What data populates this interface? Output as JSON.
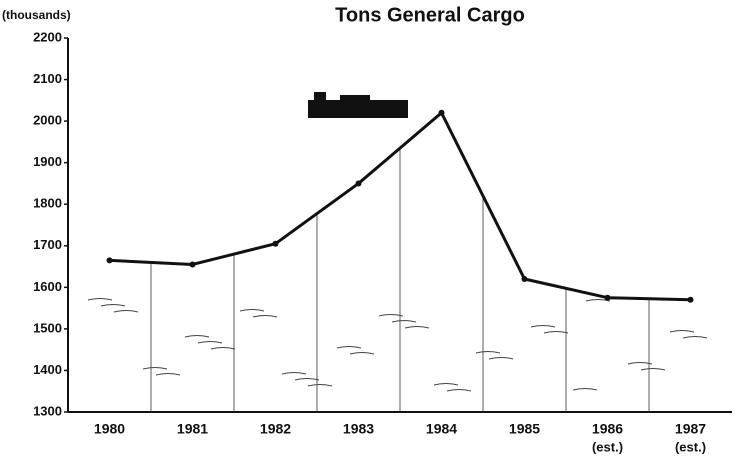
{
  "chart_data": {
    "type": "line",
    "title": "Tons General Cargo",
    "y_axis_label": "(thousands)",
    "categories": [
      "1980",
      "1981",
      "1982",
      "1983",
      "1984",
      "1985",
      "1986",
      "1987"
    ],
    "category_notes": [
      null,
      null,
      null,
      null,
      null,
      null,
      "(est.)",
      "(est.)"
    ],
    "values": [
      1665,
      1655,
      1705,
      1850,
      2020,
      1620,
      1575,
      1570
    ],
    "color": "#111111",
    "ylim": [
      1300,
      2200
    ],
    "yticks": [
      1300,
      1400,
      1500,
      1600,
      1700,
      1800,
      1900,
      2000,
      2100,
      2200
    ]
  }
}
